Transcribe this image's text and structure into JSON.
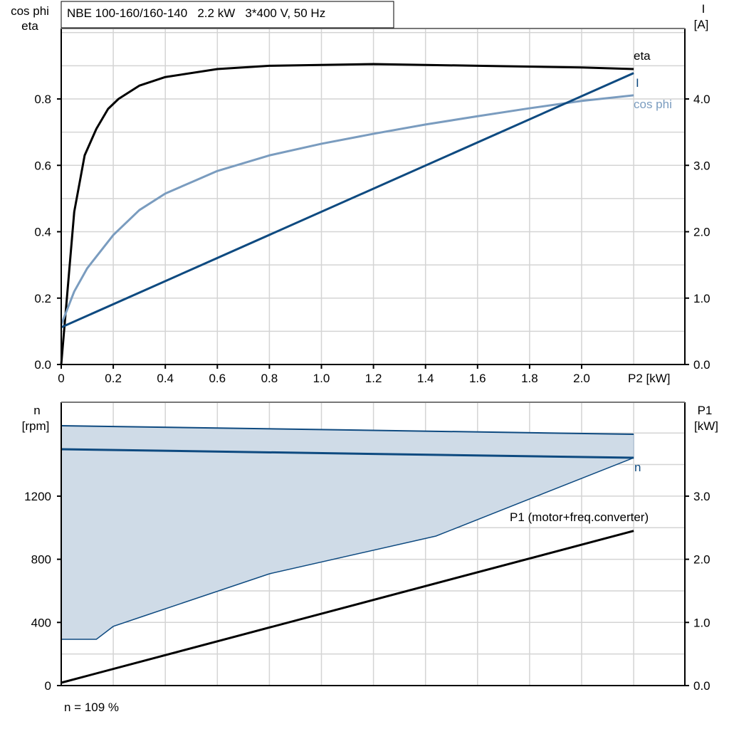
{
  "chart_data": [
    {
      "type": "line",
      "title": "NBE 100-160/160-140   2.2 kW   3*400 V, 50 Hz",
      "xlabel": "P2 [kW]",
      "ylabel_left": [
        "cos phi",
        "eta"
      ],
      "ylabel_right": [
        "I",
        "[A]"
      ],
      "xlim": [
        0,
        2.4
      ],
      "ylim_left": [
        0,
        1.01
      ],
      "ylim_right": [
        0,
        5.05
      ],
      "x_ticks": [
        "0",
        "0.2",
        "0.4",
        "0.6",
        "0.8",
        "1.0",
        "1.2",
        "1.4",
        "1.6",
        "1.8",
        "2.0"
      ],
      "y_ticks_left": [
        "0.0",
        "0.2",
        "0.4",
        "0.6",
        "0.8"
      ],
      "y_ticks_right": [
        "0.0",
        "1.0",
        "2.0",
        "3.0",
        "4.0"
      ],
      "grid": true,
      "series": [
        {
          "name": "eta",
          "axis": "left",
          "color": "#000000",
          "x": [
            0,
            0.05,
            0.09,
            0.135,
            0.18,
            0.22,
            0.3,
            0.4,
            0.6,
            0.8,
            1.2,
            1.6,
            2.0,
            2.2
          ],
          "y": [
            0,
            0.46,
            0.63,
            0.71,
            0.77,
            0.8,
            0.84,
            0.866,
            0.89,
            0.9,
            0.905,
            0.9,
            0.895,
            0.89
          ]
        },
        {
          "name": "cos phi",
          "axis": "left",
          "color": "#7a9cbf",
          "x": [
            0,
            0.05,
            0.1,
            0.2,
            0.3,
            0.4,
            0.6,
            0.8,
            1.0,
            1.2,
            1.4,
            1.6,
            1.8,
            2.0,
            2.2
          ],
          "y": [
            0.12,
            0.22,
            0.29,
            0.39,
            0.465,
            0.515,
            0.583,
            0.63,
            0.665,
            0.695,
            0.723,
            0.748,
            0.772,
            0.794,
            0.811
          ]
        },
        {
          "name": "I",
          "axis": "right",
          "color": "#0e4a80",
          "x": [
            0,
            2.2
          ],
          "y": [
            0.56,
            4.39
          ]
        }
      ]
    },
    {
      "type": "line",
      "xlim": [
        0,
        2.4
      ],
      "ylabel_left": [
        "n",
        "[rpm]"
      ],
      "ylabel_right": [
        "P1",
        "[kW]"
      ],
      "ylim_left": [
        0,
        1795
      ],
      "ylim_right": [
        0,
        4.49
      ],
      "y_ticks_left": [
        "0",
        "400",
        "800",
        "1200"
      ],
      "y_ticks_right": [
        "0.0",
        "1.0",
        "2.0",
        "3.0"
      ],
      "grid": true,
      "footnote": "n = 109 %",
      "area": {
        "color": "#cfdbe7",
        "upper": {
          "x": [
            0,
            2.2
          ],
          "y": [
            1646,
            1592
          ]
        },
        "lower": {
          "x": [
            0,
            0.135,
            0.2,
            0.32,
            0.8,
            1.44,
            2.2
          ],
          "y": [
            293,
            293,
            375,
            442,
            708,
            947,
            1443
          ]
        }
      },
      "series": [
        {
          "name": "n",
          "axis": "left",
          "color": "#0e4a80",
          "x": [
            0,
            2.2
          ],
          "y": [
            1497,
            1443
          ]
        },
        {
          "name": "P1 (motor+freq.converter)",
          "axis": "right",
          "color": "#000000",
          "x": [
            0,
            2.2
          ],
          "y": [
            0.045,
            2.45
          ]
        }
      ]
    }
  ]
}
